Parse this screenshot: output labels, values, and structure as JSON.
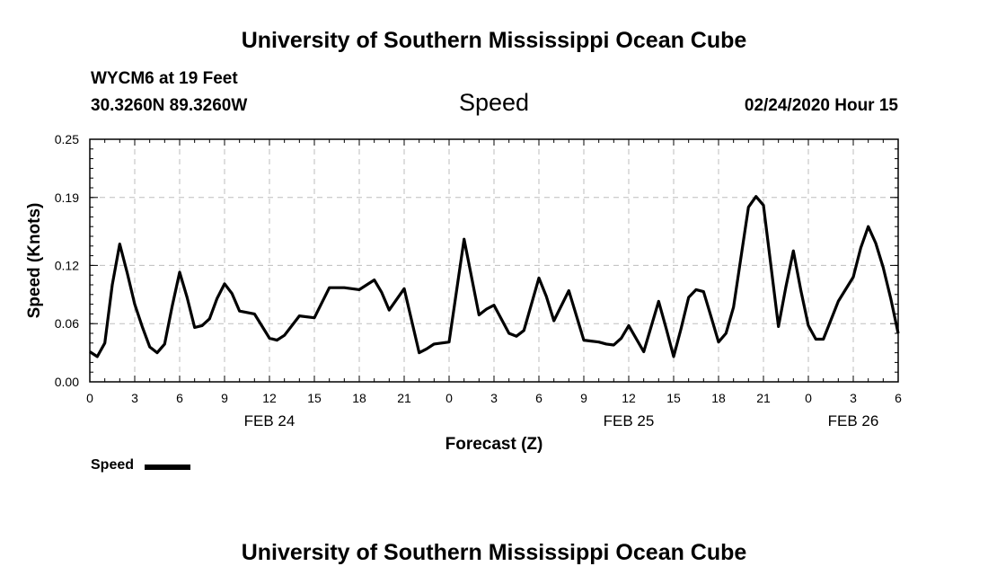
{
  "header": {
    "title": "University of Southern Mississippi Ocean Cube",
    "station": "WYCM6 at 19 Feet",
    "coords": "30.3260N 89.3260W",
    "chart_title": "Speed",
    "timestamp": "02/24/2020 Hour 15"
  },
  "legend": {
    "label": "Speed",
    "color": "#000000"
  },
  "footer": {
    "title": "University of Southern Mississippi Ocean Cube"
  },
  "chart_data": {
    "type": "line",
    "title": "Speed",
    "xlabel": "Forecast (Z)",
    "ylabel": "Speed (Knots)",
    "ylim": [
      0,
      0.25
    ],
    "xlim": [
      0,
      54
    ],
    "yticks": [
      0,
      0.06,
      0.12,
      0.19,
      0.25
    ],
    "ytick_labels": [
      "0.00",
      "0.06",
      "0.12",
      "0.19",
      "0.25"
    ],
    "xticks": [
      0,
      3,
      6,
      9,
      12,
      15,
      18,
      21,
      24,
      27,
      30,
      33,
      36,
      39,
      42,
      45,
      48,
      51,
      54
    ],
    "xtick_labels": [
      "0",
      "3",
      "6",
      "9",
      "12",
      "15",
      "18",
      "21",
      "0",
      "3",
      "6",
      "9",
      "12",
      "15",
      "18",
      "21",
      "0",
      "3",
      "6"
    ],
    "day_labels": [
      {
        "label": "FEB 24",
        "x": 12
      },
      {
        "label": "FEB 25",
        "x": 36
      },
      {
        "label": "FEB 26",
        "x": 51
      }
    ],
    "grid": true,
    "legend_position": "bottom-left",
    "series": [
      {
        "name": "Speed",
        "color": "#000000",
        "x": [
          0,
          0.5,
          1,
          1.5,
          2,
          2.5,
          3,
          3.5,
          4,
          4.5,
          5,
          5.5,
          6,
          6.5,
          7,
          7.5,
          8,
          8.5,
          9,
          9.5,
          10,
          11,
          12,
          12.5,
          13,
          14,
          15,
          16,
          17,
          18,
          19,
          19.5,
          20,
          21,
          22,
          22.5,
          23,
          24,
          25,
          26,
          26.5,
          27,
          28,
          28.5,
          29,
          30,
          30.5,
          31,
          32,
          33,
          34,
          34.5,
          35,
          35.5,
          36,
          37,
          37.5,
          38,
          38.5,
          39,
          39.5,
          40,
          40.5,
          41,
          41.5,
          42,
          42.5,
          43,
          44,
          44.5,
          45,
          46,
          46.5,
          47,
          47.5,
          48,
          48.5,
          49,
          50,
          51,
          51.5,
          52,
          52.5,
          53,
          53.5,
          54
        ],
        "values": [
          0.031,
          0.026,
          0.04,
          0.1,
          0.142,
          0.112,
          0.08,
          0.057,
          0.036,
          0.03,
          0.039,
          0.078,
          0.113,
          0.087,
          0.056,
          0.058,
          0.065,
          0.086,
          0.101,
          0.091,
          0.073,
          0.07,
          0.045,
          0.043,
          0.048,
          0.068,
          0.066,
          0.097,
          0.097,
          0.095,
          0.105,
          0.092,
          0.074,
          0.096,
          0.03,
          0.034,
          0.039,
          0.041,
          0.147,
          0.069,
          0.075,
          0.079,
          0.05,
          0.047,
          0.053,
          0.107,
          0.088,
          0.063,
          0.094,
          0.043,
          0.041,
          0.039,
          0.038,
          0.045,
          0.058,
          0.031,
          0.057,
          0.083,
          0.055,
          0.026,
          0.055,
          0.087,
          0.095,
          0.093,
          0.067,
          0.041,
          0.05,
          0.077,
          0.18,
          0.191,
          0.182,
          0.057,
          0.098,
          0.135,
          0.094,
          0.058,
          0.044,
          0.044,
          0.083,
          0.108,
          0.138,
          0.16,
          0.143,
          0.118,
          0.086,
          0.05
        ]
      }
    ]
  }
}
